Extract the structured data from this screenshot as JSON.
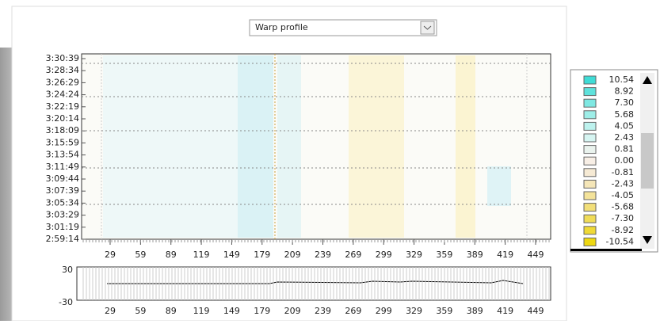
{
  "dropdown": {
    "label": "Warp profile"
  },
  "heatmap": {
    "y_labels": [
      "3:30:39",
      "3:28:34",
      "3:26:29",
      "3:24:24",
      "3:22:19",
      "3:20:14",
      "3:18:09",
      "3:15:59",
      "3:13:54",
      "3:11:49",
      "3:09:44",
      "3:07:39",
      "3:05:34",
      "3:03:29",
      "3:01:19",
      "2:59:14"
    ],
    "x_labels": [
      "29",
      "59",
      "89",
      "119",
      "149",
      "179",
      "209",
      "239",
      "269",
      "299",
      "329",
      "359",
      "389",
      "419",
      "449"
    ]
  },
  "legend": {
    "items": [
      {
        "label": "10.54",
        "color": "#3fdcd6"
      },
      {
        "label": "8.92",
        "color": "#5fe2dc"
      },
      {
        "label": "7.30",
        "color": "#7fe8e2"
      },
      {
        "label": "5.68",
        "color": "#9eeee8"
      },
      {
        "label": "4.05",
        "color": "#bdf2ee"
      },
      {
        "label": "2.43",
        "color": "#d6f5f2"
      },
      {
        "label": "0.81",
        "color": "#eaf3ee"
      },
      {
        "label": "0.00",
        "color": "#f8efe6"
      },
      {
        "label": "-0.81",
        "color": "#f6ead4"
      },
      {
        "label": "-2.43",
        "color": "#f5e6b8"
      },
      {
        "label": "-4.05",
        "color": "#f4e39a"
      },
      {
        "label": "-5.68",
        "color": "#f2df7a"
      },
      {
        "label": "-7.30",
        "color": "#f0dc58"
      },
      {
        "label": "-8.92",
        "color": "#efd936"
      },
      {
        "label": "-10.54",
        "color": "#eed812"
      }
    ]
  },
  "profile": {
    "y_labels": [
      "30",
      "-30"
    ],
    "x_labels": [
      "29",
      "59",
      "89",
      "119",
      "149",
      "179",
      "209",
      "239",
      "269",
      "299",
      "329",
      "359",
      "389",
      "419",
      "449"
    ]
  }
}
